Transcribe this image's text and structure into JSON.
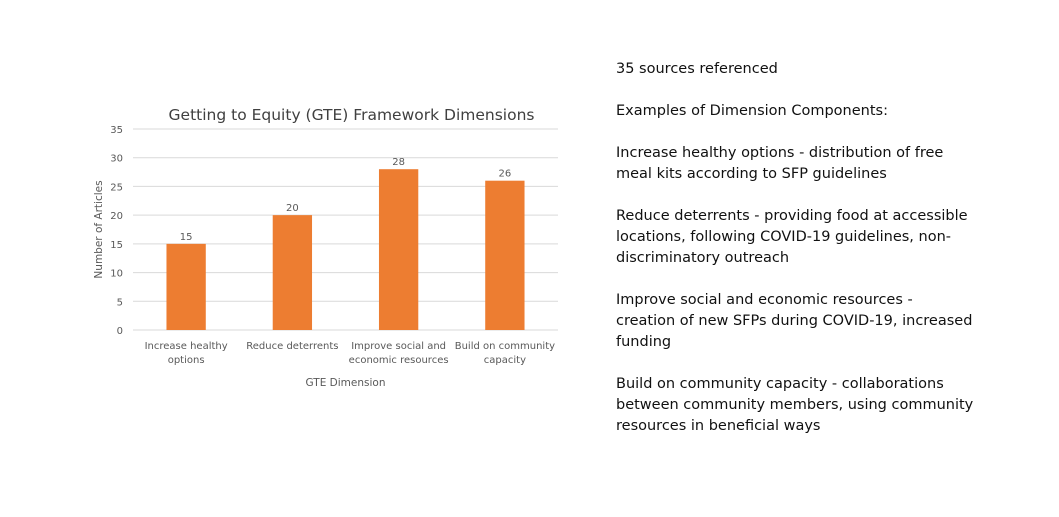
{
  "chart_data": {
    "type": "bar",
    "title": "Getting to Equity (GTE) Framework Dimensions",
    "xlabel": "GTE Dimension",
    "ylabel": "Number of Articles",
    "categories": [
      [
        "Increase healthy",
        "options"
      ],
      [
        "Reduce deterrents"
      ],
      [
        "Improve social and",
        "economic resources"
      ],
      [
        "Build on community",
        "capacity"
      ]
    ],
    "values": [
      15,
      20,
      28,
      26
    ],
    "data_labels": [
      "15",
      "20",
      "28",
      "26"
    ],
    "ylim": [
      0,
      35
    ],
    "yticks": [
      0,
      5,
      10,
      15,
      20,
      25,
      30,
      35
    ],
    "grid": true,
    "legend": "none",
    "colors": {
      "bar": "#ED7D31",
      "grid": "#D9D9D9",
      "text": "#595959"
    }
  },
  "notes": {
    "sources": "35 sources referenced",
    "heading": "Examples of Dimension Components:",
    "items": [
      "Increase healthy options - distribution of free meal kits according to SFP guidelines",
      "Reduce deterrents - providing food at accessible locations, following COVID-19 guidelines, non-discriminatory outreach",
      "Improve social and economic resources - creation of new SFPs during COVID-19, increased funding",
      "Build on community capacity - collaborations between community members, using community resources in beneficial ways"
    ]
  }
}
